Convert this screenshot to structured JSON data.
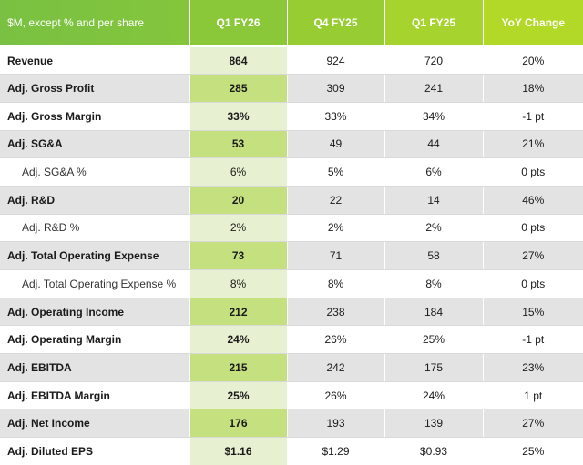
{
  "table": {
    "headers": [
      "$M, except % and per share",
      "Q1 FY26",
      "Q4 FY25",
      "Q1 FY25",
      "YoY Change"
    ],
    "rows": [
      {
        "label": "Revenue",
        "q1fy26": "864",
        "q4fy25": "924",
        "q1fy25": "720",
        "yoy": "20%",
        "indent": false
      },
      {
        "label": "Adj. Gross Profit",
        "q1fy26": "285",
        "q4fy25": "309",
        "q1fy25": "241",
        "yoy": "18%",
        "indent": false
      },
      {
        "label": "Adj. Gross Margin",
        "q1fy26": "33%",
        "q4fy25": "33%",
        "q1fy25": "34%",
        "yoy": "-1 pt",
        "indent": false
      },
      {
        "label": "Adj. SG&A",
        "q1fy26": "53",
        "q4fy25": "49",
        "q1fy25": "44",
        "yoy": "21%",
        "indent": false
      },
      {
        "label": "Adj. SG&A %",
        "q1fy26": "6%",
        "q4fy25": "5%",
        "q1fy25": "6%",
        "yoy": "0 pts",
        "indent": true
      },
      {
        "label": "Adj. R&D",
        "q1fy26": "20",
        "q4fy25": "22",
        "q1fy25": "14",
        "yoy": "46%",
        "indent": false
      },
      {
        "label": "Adj. R&D %",
        "q1fy26": "2%",
        "q4fy25": "2%",
        "q1fy25": "2%",
        "yoy": "0 pts",
        "indent": true
      },
      {
        "label": "Adj. Total Operating Expense",
        "q1fy26": "73",
        "q4fy25": "71",
        "q1fy25": "58",
        "yoy": "27%",
        "indent": false
      },
      {
        "label": "Adj. Total Operating Expense %",
        "q1fy26": "8%",
        "q4fy25": "8%",
        "q1fy25": "8%",
        "yoy": "0 pts",
        "indent": true
      },
      {
        "label": "Adj. Operating Income",
        "q1fy26": "212",
        "q4fy25": "238",
        "q1fy25": "184",
        "yoy": "15%",
        "indent": false
      },
      {
        "label": "Adj. Operating Margin",
        "q1fy26": "24%",
        "q4fy25": "26%",
        "q1fy25": "25%",
        "yoy": "-1 pt",
        "indent": false
      },
      {
        "label": "Adj. EBITDA",
        "q1fy26": "215",
        "q4fy25": "242",
        "q1fy25": "175",
        "yoy": "23%",
        "indent": false
      },
      {
        "label": "Adj. EBITDA Margin",
        "q1fy26": "25%",
        "q4fy25": "26%",
        "q1fy25": "24%",
        "yoy": "1 pt",
        "indent": false
      },
      {
        "label": "Adj. Net Income",
        "q1fy26": "176",
        "q4fy25": "193",
        "q1fy25": "139",
        "yoy": "27%",
        "indent": false
      },
      {
        "label": "Adj. Diluted EPS",
        "q1fy26": "$1.16",
        "q4fy25": "$1.29",
        "q1fy25": "$0.93",
        "yoy": "25%",
        "indent": false
      }
    ]
  },
  "colors": {
    "header_green_start": "#79c142",
    "header_green_end": "#b3d928",
    "highlight_light": "#e7f1d2",
    "highlight_dark": "#c5e07f",
    "row_stripe": "#e3e3e3"
  }
}
